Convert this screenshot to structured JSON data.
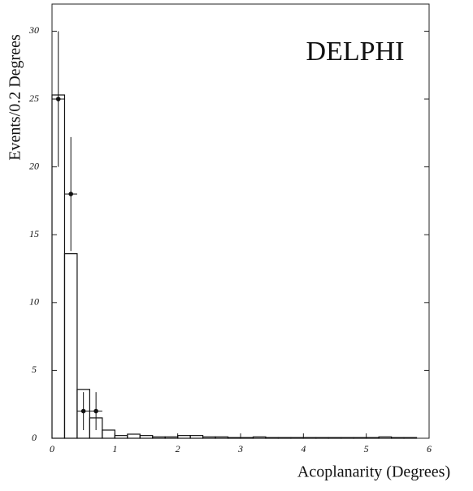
{
  "chart_data": {
    "type": "histogram",
    "annotation": "DELPHI",
    "xlabel": "Acoplanarity (Degrees)",
    "ylabel": "Events/0.2 Degrees",
    "bins": [
      0,
      0.2,
      0.4,
      0.6,
      0.8,
      1.0,
      1.2,
      1.4,
      1.6,
      1.8,
      2.0,
      2.2,
      2.4,
      2.6,
      2.8,
      3.0,
      3.2,
      3.4,
      3.6,
      3.8,
      4.0,
      4.2,
      4.4,
      4.6,
      4.8,
      5.0,
      5.2,
      5.4,
      5.6,
      5.8,
      6.0
    ],
    "counts": [
      25.3,
      13.6,
      3.6,
      1.5,
      0.6,
      0.2,
      0.3,
      0.2,
      0.1,
      0.1,
      0.2,
      0.2,
      0.1,
      0.1,
      0.05,
      0.05,
      0.1,
      0.05,
      0.05,
      0.05,
      0.05,
      0.05,
      0.05,
      0.05,
      0.05,
      0.05,
      0.1,
      0.05,
      0.05,
      0
    ],
    "points": {
      "x": [
        0.1,
        0.3,
        0.5,
        0.7
      ],
      "values": [
        25,
        18,
        2,
        2
      ],
      "errors": [
        5,
        4.2,
        1.4,
        1.4
      ],
      "xerrors": [
        0.1,
        0.1,
        0.1,
        0.1
      ]
    },
    "xlim": [
      0,
      6
    ],
    "xticks": [
      0,
      1,
      2,
      3,
      4,
      5,
      6
    ],
    "ylim": [
      0,
      32
    ],
    "yticks": [
      0,
      5,
      10,
      15,
      20,
      25,
      30
    ]
  }
}
